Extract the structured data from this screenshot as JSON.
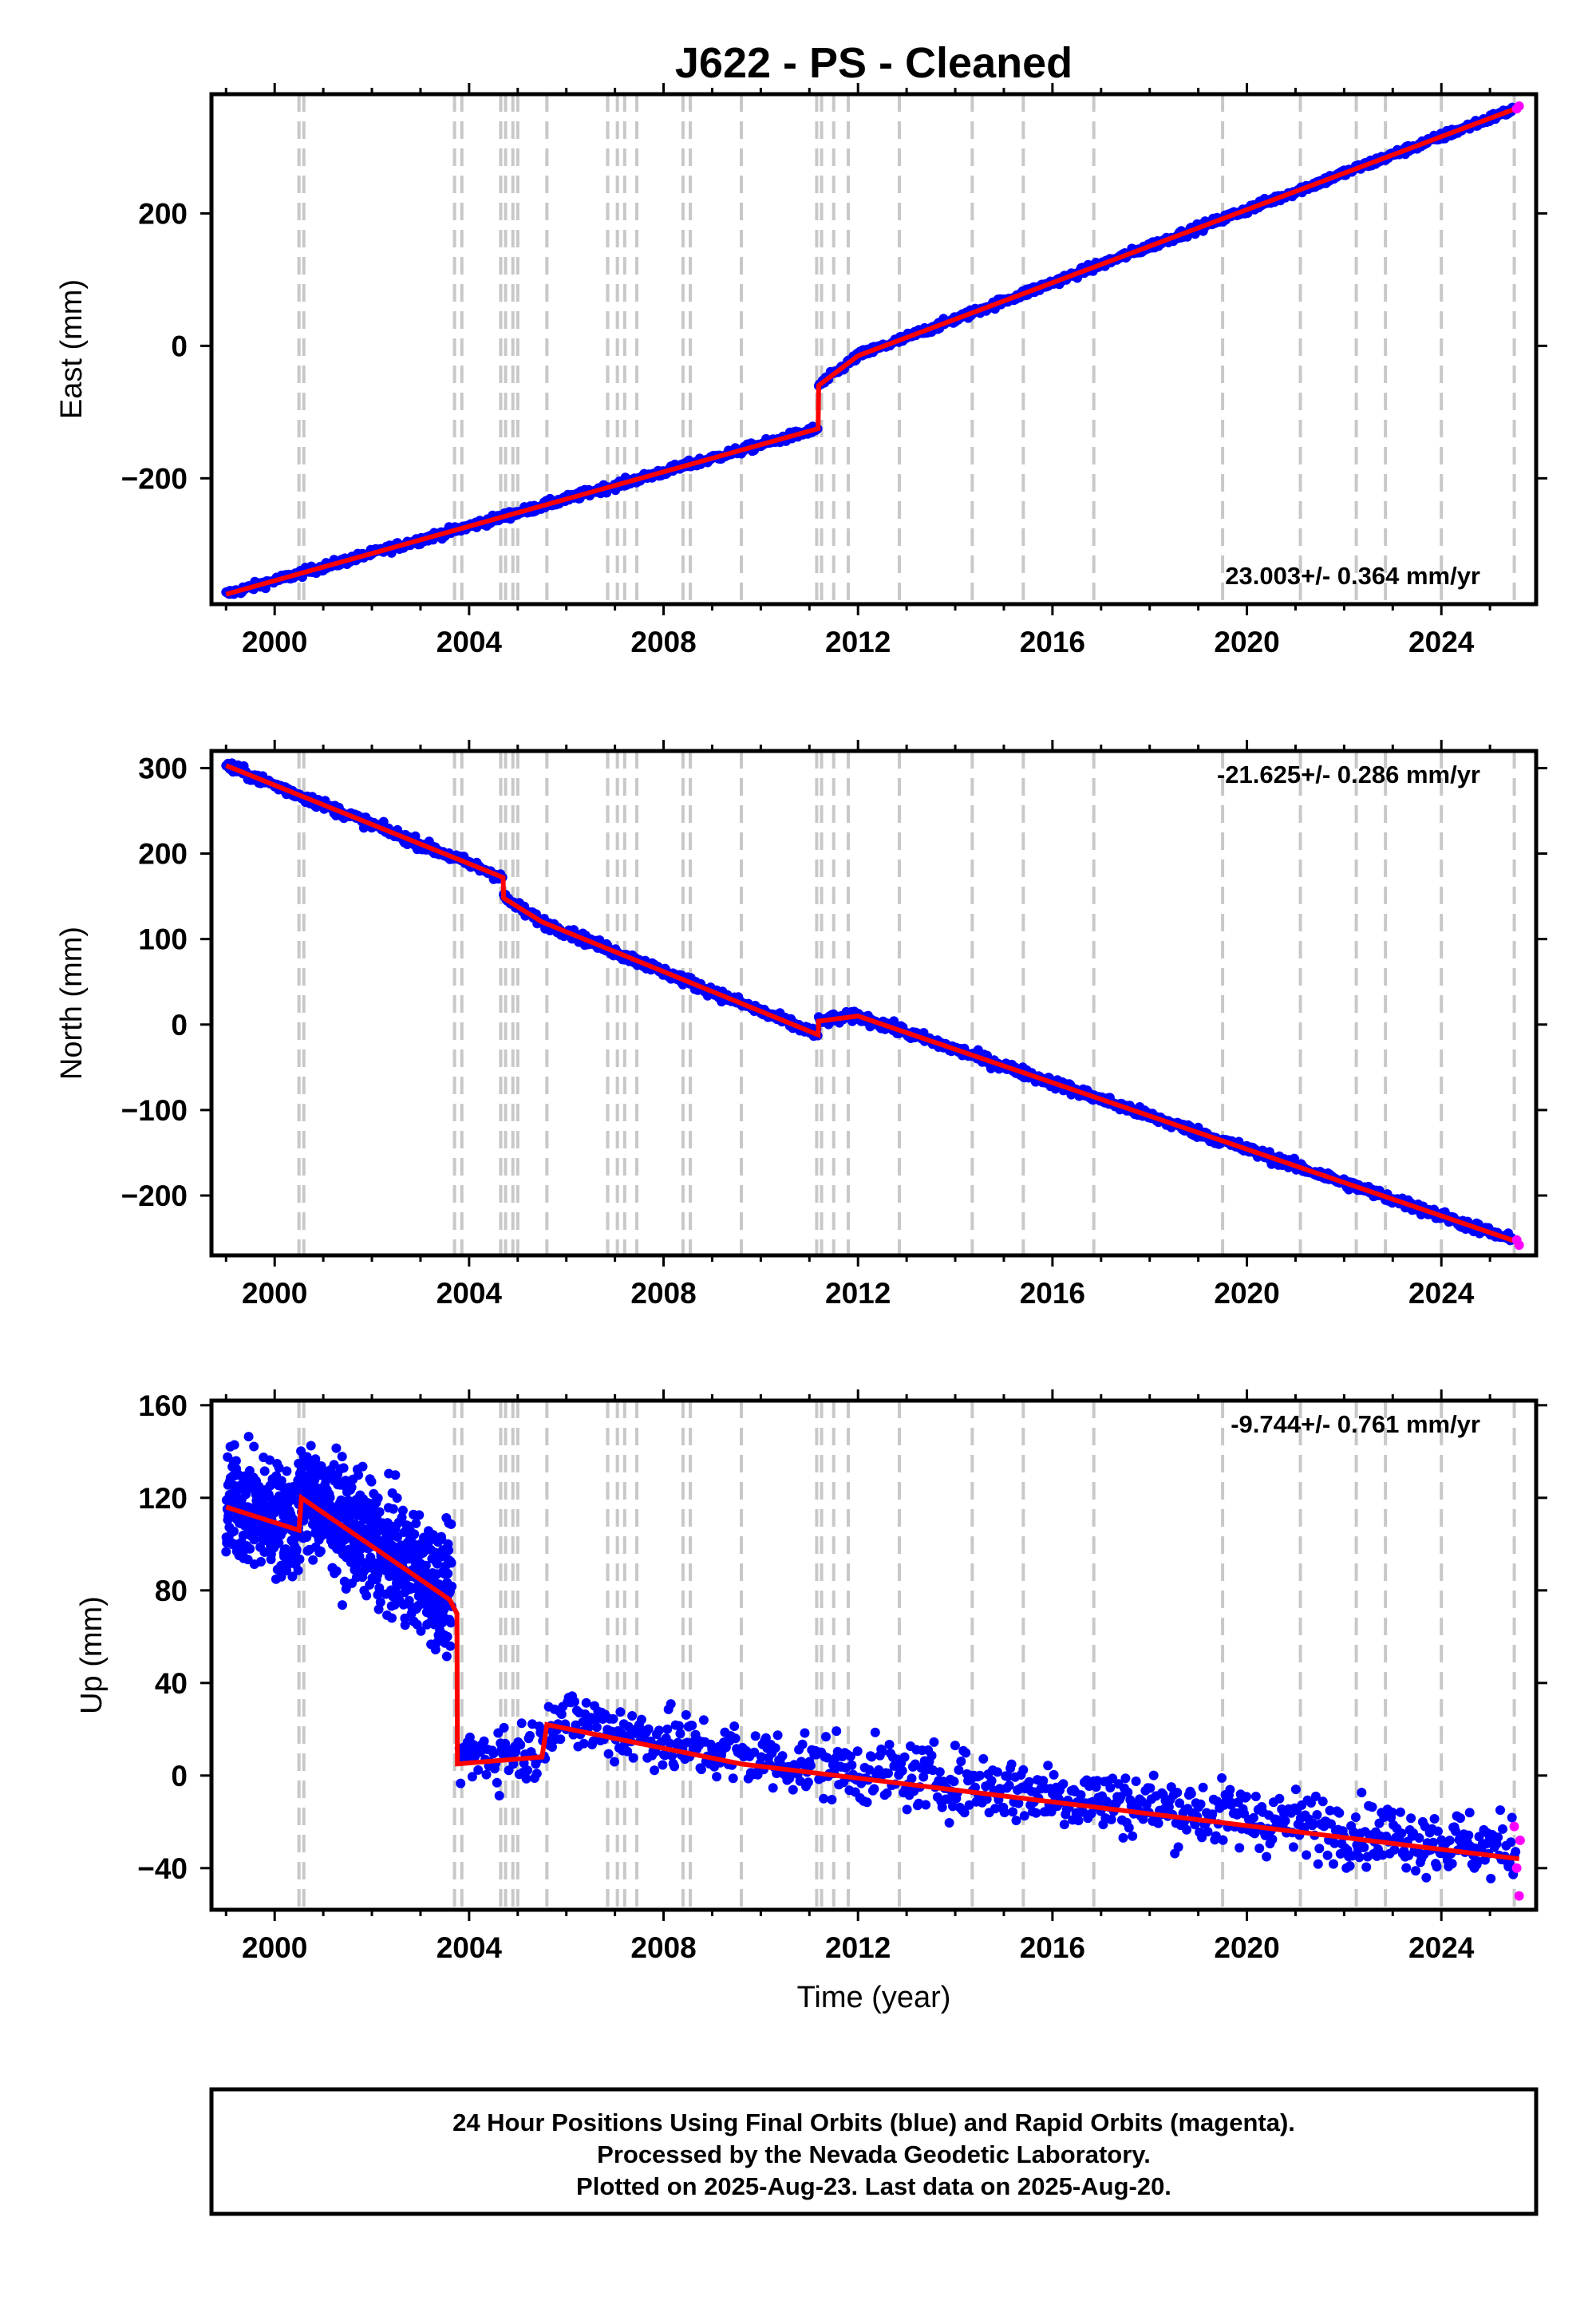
{
  "title": "J622  - PS - Cleaned",
  "xlabel": "Time (year)",
  "footer": {
    "line1": "24 Hour Positions Using Final Orbits (blue) and Rapid Orbits (magenta).",
    "line2": "Processed by the Nevada Geodetic Laboratory.",
    "line3": "Plotted on 2025-Aug-23. Last data on 2025-Aug-20."
  },
  "colors": {
    "final_orbits": "#0000ff",
    "rapid_orbits": "#ff00ff",
    "model": "#ff0000",
    "event_lines": "#c8c8c8"
  },
  "chart_data": [
    {
      "type": "scatter",
      "name": "east",
      "ylabel": "East (mm)",
      "rate_text": "23.003+/- 0.364 mm/yr",
      "rate_position": "bottom-right",
      "xlim": [
        1998.7,
        2025.95
      ],
      "ylim": [
        -390,
        380
      ],
      "x_ticks": [
        2000,
        2004,
        2008,
        2012,
        2016,
        2020,
        2024
      ],
      "y_ticks": [
        -200,
        0,
        200
      ],
      "event_lines": [
        2000.5,
        2000.6,
        2003.7,
        2003.85,
        2004.65,
        2004.75,
        2004.9,
        2005.0,
        2005.6,
        2006.85,
        2007.05,
        2007.2,
        2007.45,
        2008.4,
        2008.55,
        2009.6,
        2011.15,
        2011.25,
        2011.5,
        2011.8,
        2012.85,
        2014.35,
        2015.4,
        2016.85,
        2019.5,
        2021.1,
        2022.25,
        2022.85,
        2024.0,
        2025.5
      ],
      "model_breakpoints": {
        "x": [
          1999.0,
          2011.18,
          2011.19,
          2012.0,
          2025.6
        ],
        "y": [
          -375,
          -125,
          -60,
          -15,
          360
        ]
      },
      "rapid_orbits": {
        "x": [
          2025.55,
          2025.6
        ],
        "y": [
          358,
          362
        ]
      },
      "series": [
        "Final Orbits",
        "Rapid Orbits",
        "Model"
      ]
    },
    {
      "type": "scatter",
      "name": "north",
      "ylabel": "North (mm)",
      "rate_text": "-21.625+/- 0.286 mm/yr",
      "rate_position": "top-right",
      "xlim": [
        1998.7,
        2025.95
      ],
      "ylim": [
        -270,
        320
      ],
      "x_ticks": [
        2000,
        2004,
        2008,
        2012,
        2016,
        2020,
        2024
      ],
      "y_ticks": [
        -200,
        -100,
        0,
        100,
        200,
        300
      ],
      "event_lines": [
        2000.5,
        2000.6,
        2003.7,
        2003.85,
        2004.65,
        2004.75,
        2004.9,
        2005.0,
        2005.6,
        2006.85,
        2007.05,
        2007.2,
        2007.45,
        2008.4,
        2008.55,
        2009.6,
        2011.15,
        2011.25,
        2011.5,
        2011.8,
        2012.85,
        2014.35,
        2015.4,
        2016.85,
        2019.5,
        2021.1,
        2022.25,
        2022.85,
        2024.0,
        2025.5
      ],
      "model_breakpoints": {
        "x": [
          1999.0,
          2004.7,
          2004.71,
          2005.5,
          2011.18,
          2011.19,
          2012.0,
          2025.6
        ],
        "y": [
          303,
          172,
          148,
          120,
          -12,
          4,
          10,
          -255
        ]
      },
      "rapid_orbits": {
        "x": [
          2025.55,
          2025.6
        ],
        "y": [
          -252,
          -258
        ]
      },
      "series": [
        "Final Orbits",
        "Rapid Orbits",
        "Model"
      ]
    },
    {
      "type": "scatter",
      "name": "up",
      "ylabel": "Up (mm)",
      "rate_text": "-9.744+/- 0.761 mm/yr",
      "rate_position": "top-right",
      "xlim": [
        1998.7,
        2025.95
      ],
      "ylim": [
        -58,
        162
      ],
      "x_ticks": [
        2000,
        2004,
        2008,
        2012,
        2016,
        2020,
        2024
      ],
      "y_ticks": [
        -40,
        0,
        40,
        80,
        120,
        160
      ],
      "event_lines": [
        2000.5,
        2000.6,
        2003.7,
        2003.85,
        2004.65,
        2004.75,
        2004.9,
        2005.0,
        2005.6,
        2006.85,
        2007.05,
        2007.2,
        2007.45,
        2008.4,
        2008.55,
        2009.6,
        2011.15,
        2011.25,
        2011.5,
        2011.8,
        2012.85,
        2014.35,
        2015.4,
        2016.85,
        2019.5,
        2021.1,
        2022.25,
        2022.85,
        2024.0,
        2025.5
      ],
      "model_breakpoints": {
        "x": [
          1999.0,
          2000.5,
          2000.55,
          2003.6,
          2003.75,
          2003.76,
          2005.5,
          2005.6,
          2009.6,
          2025.6
        ],
        "y": [
          116,
          106,
          120,
          76,
          70,
          5,
          8,
          22,
          5,
          -36
        ]
      },
      "data_segments": [
        {
          "x0": 1999.0,
          "x1": 2003.65,
          "y0": 120,
          "y1": 98,
          "spread": 12
        },
        {
          "x0": 2003.8,
          "x1": 2025.55,
          "y0": 12,
          "y1": -33,
          "spread": 7
        }
      ],
      "rapid_orbits": {
        "x": [
          2025.5,
          2025.55,
          2025.6,
          2025.62
        ],
        "y": [
          -22,
          -40,
          -52,
          -28
        ]
      },
      "series": [
        "Final Orbits",
        "Rapid Orbits",
        "Model"
      ]
    }
  ]
}
